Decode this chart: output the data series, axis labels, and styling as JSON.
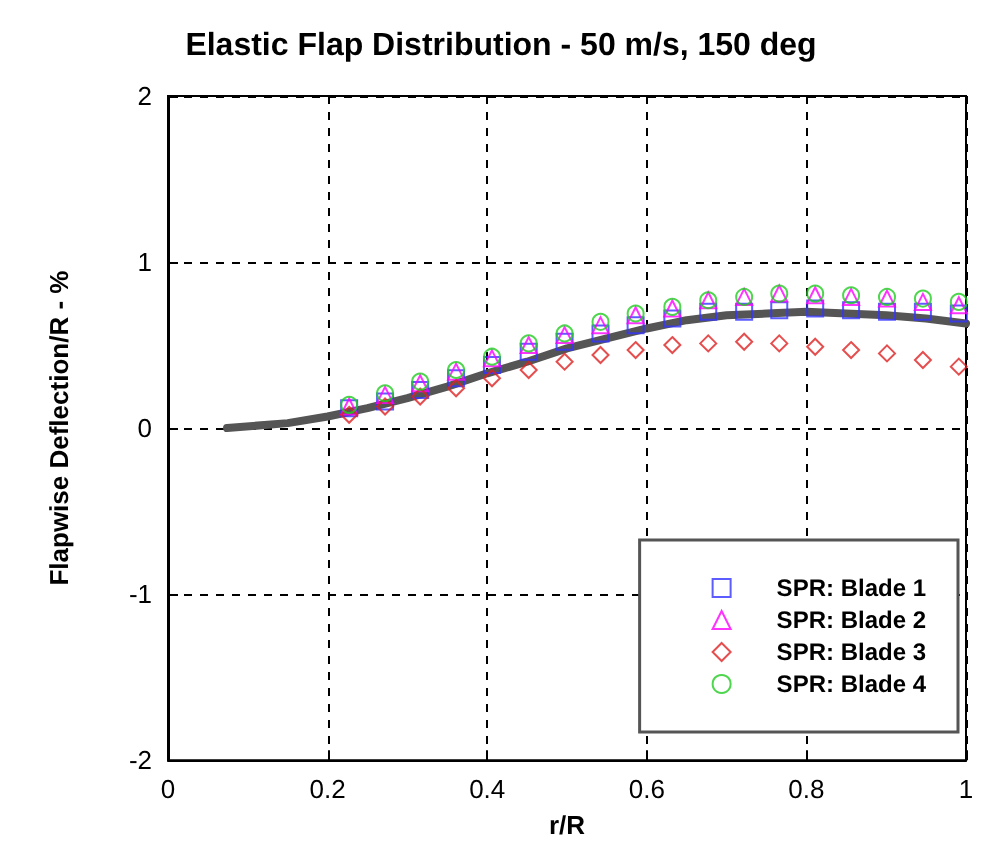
{
  "chart_data": {
    "type": "scatter",
    "title": "Elastic Flap Distribution - 50 m/s, 150 deg",
    "xlabel": "r/R",
    "ylabel": "Flapwise Deflection/R - %",
    "xlim": [
      0,
      1
    ],
    "xticks": [
      0,
      0.2,
      0.4,
      0.6,
      0.8,
      1
    ],
    "ylim": [
      -2,
      2
    ],
    "yticks": [
      -2,
      -1,
      0,
      1,
      2
    ],
    "grid": true,
    "legend": "bottom right",
    "x": [
      0.227,
      0.272,
      0.316,
      0.361,
      0.406,
      0.452,
      0.497,
      0.542,
      0.586,
      0.632,
      0.677,
      0.722,
      0.766,
      0.811,
      0.856,
      0.901,
      0.946,
      0.991
    ],
    "series": [
      {
        "type": "line",
        "color": "#555555",
        "marker": "none",
        "line_style": "solid",
        "x": [
          0.074,
          0.15,
          0.2,
          0.25,
          0.3,
          0.35,
          0.4,
          0.45,
          0.5,
          0.55,
          0.6,
          0.65,
          0.7,
          0.75,
          0.8,
          0.85,
          0.9,
          0.95,
          1.0
        ],
        "values": [
          0,
          0.03,
          0.07,
          0.12,
          0.18,
          0.25,
          0.33,
          0.4,
          0.48,
          0.54,
          0.6,
          0.65,
          0.68,
          0.69,
          0.7,
          0.69,
          0.68,
          0.66,
          0.63
        ]
      },
      {
        "name": "SPR: Blade 1",
        "color": "#3333ff",
        "marker": "square",
        "values": [
          0.12,
          0.16,
          0.23,
          0.3,
          0.38,
          0.46,
          0.52,
          0.57,
          0.62,
          0.66,
          0.7,
          0.7,
          0.71,
          0.72,
          0.71,
          0.7,
          0.7,
          0.69
        ]
      },
      {
        "name": "SPR: Blade 2",
        "color": "#ff00ff",
        "marker": "triangle",
        "values": [
          0.13,
          0.2,
          0.27,
          0.34,
          0.42,
          0.5,
          0.56,
          0.62,
          0.68,
          0.72,
          0.77,
          0.79,
          0.81,
          0.8,
          0.79,
          0.78,
          0.76,
          0.74
        ]
      },
      {
        "name": "SPR: Blade 3",
        "color": "#dd2222",
        "marker": "diamond",
        "values": [
          0.08,
          0.13,
          0.19,
          0.24,
          0.3,
          0.35,
          0.4,
          0.44,
          0.47,
          0.5,
          0.51,
          0.52,
          0.51,
          0.49,
          0.47,
          0.45,
          0.41,
          0.37
        ]
      },
      {
        "name": "SPR: Blade 4",
        "color": "#22cc22",
        "marker": "circle",
        "values": [
          0.14,
          0.21,
          0.28,
          0.35,
          0.43,
          0.51,
          0.57,
          0.64,
          0.69,
          0.73,
          0.77,
          0.79,
          0.81,
          0.81,
          0.8,
          0.79,
          0.78,
          0.76
        ]
      }
    ]
  }
}
